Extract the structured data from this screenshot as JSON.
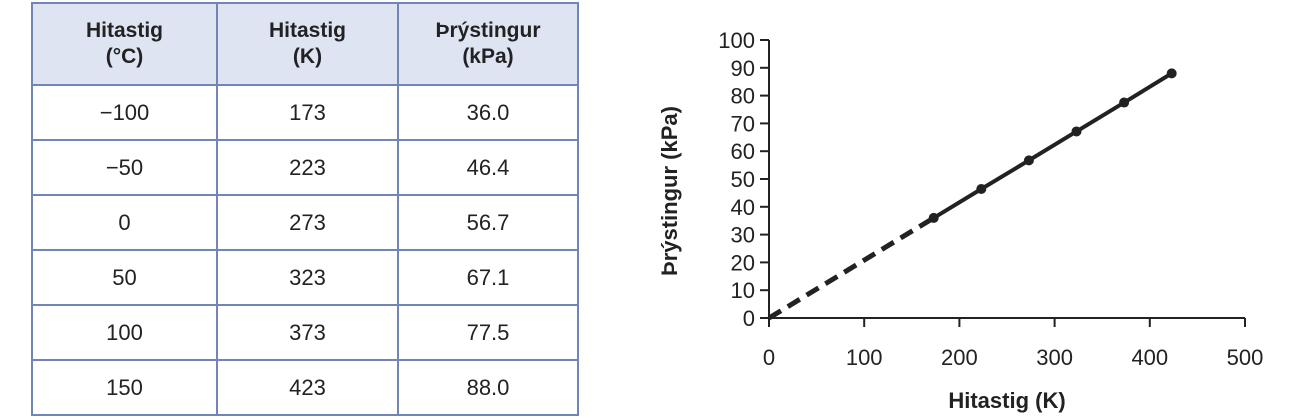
{
  "table": {
    "headers": [
      {
        "line1": "Hitastig",
        "line2": "(°C)"
      },
      {
        "line1": "Hitastig",
        "line2": "(K)"
      },
      {
        "line1": "Þrýstingur",
        "line2": "(kPa)"
      }
    ],
    "rows": [
      [
        "−100",
        "173",
        "36.0"
      ],
      [
        "−50",
        "223",
        "46.4"
      ],
      [
        "0",
        "273",
        "56.7"
      ],
      [
        "50",
        "323",
        "67.1"
      ],
      [
        "100",
        "373",
        "77.5"
      ],
      [
        "150",
        "423",
        "88.0"
      ]
    ]
  },
  "chart_data": {
    "type": "line",
    "title": "",
    "xlabel": "Hitastig (K)",
    "ylabel": "Þrýstingur (kPa)",
    "xlim": [
      0,
      500
    ],
    "ylim": [
      0,
      100
    ],
    "xticks": [
      0,
      100,
      200,
      300,
      400,
      500
    ],
    "yticks": [
      0,
      10,
      20,
      30,
      40,
      50,
      60,
      70,
      80,
      90,
      100
    ],
    "grid": false,
    "series": [
      {
        "x": [
          173,
          223,
          273,
          323,
          373,
          423
        ],
        "y": [
          36.0,
          46.4,
          56.7,
          67.1,
          77.5,
          88.0
        ],
        "color": "#222222"
      }
    ],
    "extrapolation": {
      "style": "dashed",
      "x": [
        0,
        173
      ],
      "y": [
        0,
        36.0
      ],
      "color": "#222222"
    }
  }
}
